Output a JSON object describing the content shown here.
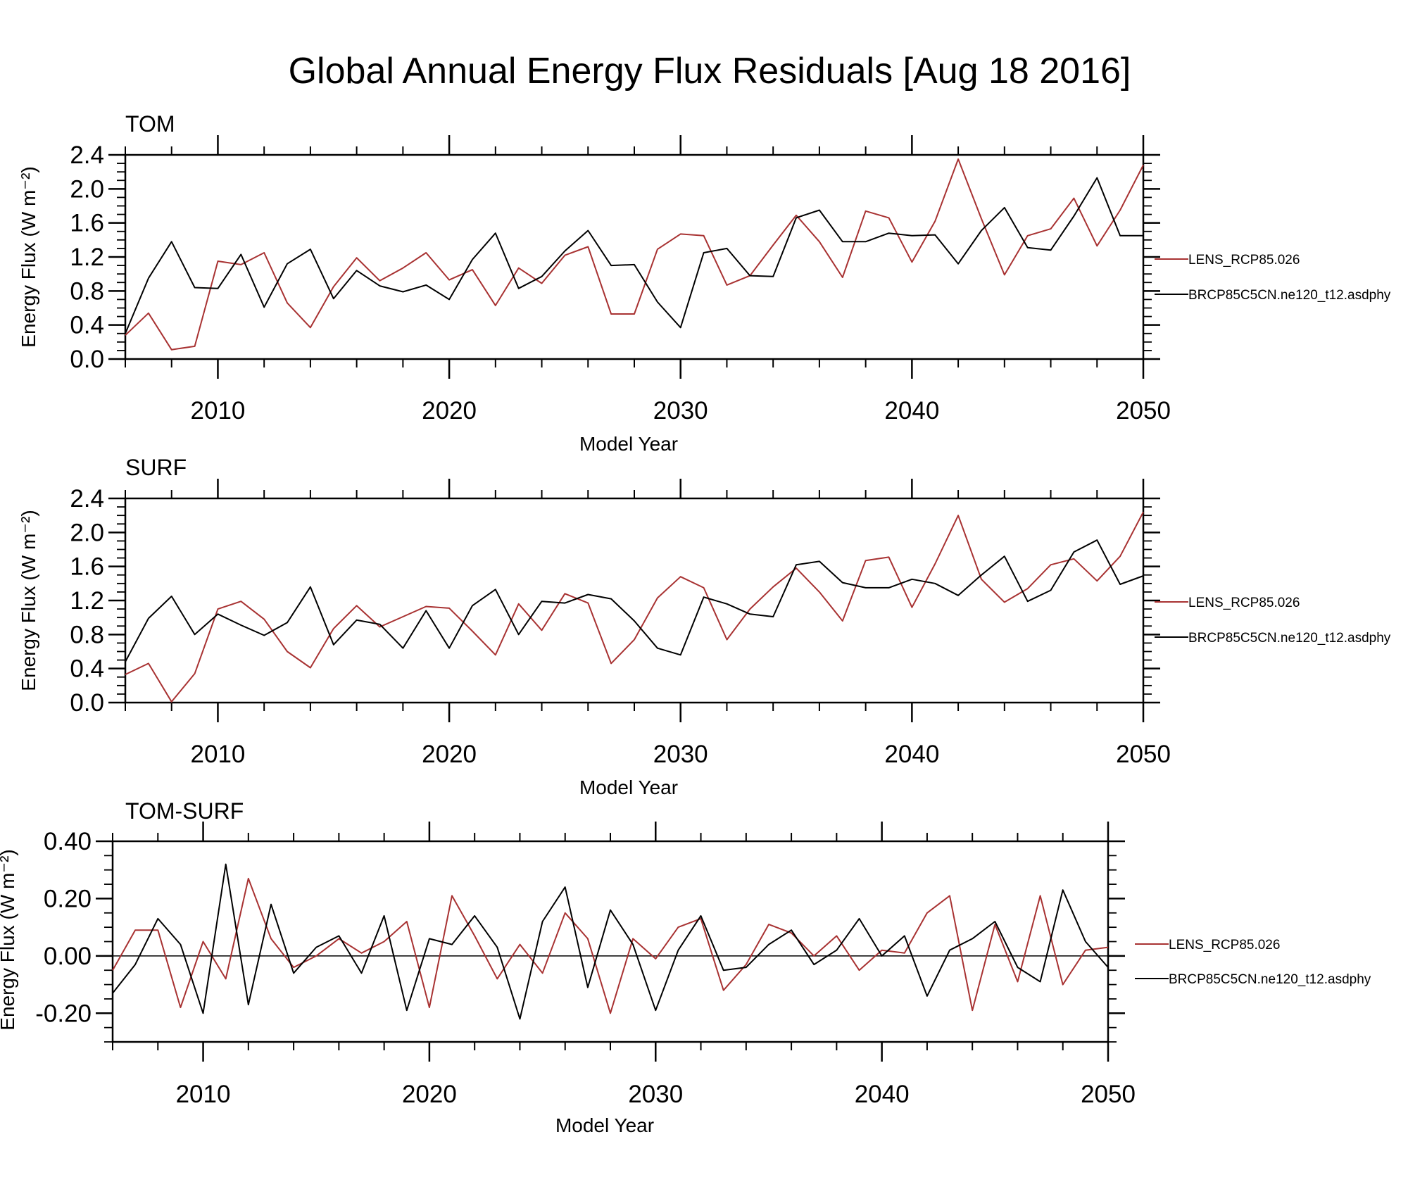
{
  "title": "Global Annual Energy Flux Residuals [Aug 18 2016]",
  "colors": {
    "LENS_RCP85.026": "#a83232",
    "BRCP85C5CN.ne120_t12.asdphy": "#000000"
  },
  "chart_data": [
    {
      "type": "line",
      "panel_title": "TOM",
      "xlabel": "Model Year",
      "ylabel": "Energy Flux (W m⁻²)",
      "xlim": [
        2006,
        2050
      ],
      "ylim": [
        0.0,
        2.4
      ],
      "yticks": [
        "0.0",
        "0.4",
        "0.8",
        "1.2",
        "1.6",
        "2.0",
        "2.4"
      ],
      "xticks": [
        "2010",
        "2020",
        "2030",
        "2040",
        "2050"
      ],
      "legend_placement": "right",
      "x": [
        2006,
        2007,
        2008,
        2009,
        2010,
        2011,
        2012,
        2013,
        2014,
        2015,
        2016,
        2017,
        2018,
        2019,
        2020,
        2021,
        2022,
        2023,
        2024,
        2025,
        2026,
        2027,
        2028,
        2029,
        2030,
        2031,
        2032,
        2033,
        2034,
        2035,
        2036,
        2037,
        2038,
        2039,
        2040,
        2041,
        2042,
        2043,
        2044,
        2045,
        2046,
        2047,
        2048,
        2049,
        2050
      ],
      "series": [
        {
          "name": "LENS_RCP85.026",
          "values": [
            0.28,
            0.54,
            0.11,
            0.15,
            1.15,
            1.11,
            1.25,
            0.66,
            0.37,
            0.85,
            1.19,
            0.92,
            1.07,
            1.25,
            0.93,
            1.05,
            0.63,
            1.07,
            0.89,
            1.22,
            1.32,
            0.53,
            0.53,
            1.29,
            1.47,
            1.45,
            0.87,
            0.98,
            1.34,
            1.69,
            1.38,
            0.96,
            1.74,
            1.66,
            1.14,
            1.62,
            2.35,
            1.65,
            0.99,
            1.45,
            1.53,
            1.89,
            1.33,
            1.75,
            2.28
          ]
        },
        {
          "name": "BRCP85C5CN.ne120_t12.asdphy",
          "values": [
            0.3,
            0.95,
            1.38,
            0.84,
            0.83,
            1.23,
            0.61,
            1.12,
            1.29,
            0.71,
            1.04,
            0.86,
            0.79,
            0.87,
            0.7,
            1.17,
            1.48,
            0.83,
            0.97,
            1.27,
            1.51,
            1.1,
            1.11,
            0.67,
            0.37,
            1.25,
            1.3,
            0.98,
            0.97,
            1.66,
            1.75,
            1.38,
            1.38,
            1.48,
            1.45,
            1.46,
            1.12,
            1.51,
            1.78,
            1.31,
            1.28,
            1.68,
            2.13,
            1.45,
            1.45
          ]
        }
      ]
    },
    {
      "type": "line",
      "panel_title": "SURF",
      "xlabel": "Model Year",
      "ylabel": "Energy Flux (W m⁻²)",
      "xlim": [
        2006,
        2050
      ],
      "ylim": [
        0.0,
        2.4
      ],
      "yticks": [
        "0.0",
        "0.4",
        "0.8",
        "1.2",
        "1.6",
        "2.0",
        "2.4"
      ],
      "xticks": [
        "2010",
        "2020",
        "2030",
        "2040",
        "2050"
      ],
      "legend_placement": "right",
      "x": [
        2006,
        2007,
        2008,
        2009,
        2010,
        2011,
        2012,
        2013,
        2014,
        2015,
        2016,
        2017,
        2018,
        2019,
        2020,
        2021,
        2022,
        2023,
        2024,
        2025,
        2026,
        2027,
        2028,
        2029,
        2030,
        2031,
        2032,
        2033,
        2034,
        2035,
        2036,
        2037,
        2038,
        2039,
        2040,
        2041,
        2042,
        2043,
        2044,
        2045,
        2046,
        2047,
        2048,
        2049,
        2050
      ],
      "series": [
        {
          "name": "LENS_RCP85.026",
          "values": [
            0.33,
            0.46,
            0.01,
            0.34,
            1.1,
            1.19,
            0.98,
            0.6,
            0.41,
            0.87,
            1.14,
            0.89,
            1.01,
            1.13,
            1.11,
            0.84,
            0.56,
            1.16,
            0.85,
            1.28,
            1.17,
            0.46,
            0.74,
            1.23,
            1.48,
            1.35,
            0.74,
            1.1,
            1.36,
            1.58,
            1.3,
            0.96,
            1.67,
            1.71,
            1.12,
            1.63,
            2.2,
            1.45,
            1.18,
            1.34,
            1.62,
            1.69,
            1.43,
            1.72,
            2.24
          ]
        },
        {
          "name": "BRCP85C5CN.ne120_t12.asdphy",
          "values": [
            0.48,
            0.99,
            1.25,
            0.8,
            1.04,
            0.91,
            0.79,
            0.94,
            1.36,
            0.68,
            0.97,
            0.92,
            0.64,
            1.08,
            0.64,
            1.14,
            1.33,
            0.8,
            1.19,
            1.17,
            1.27,
            1.22,
            0.96,
            0.64,
            0.56,
            1.24,
            1.16,
            1.04,
            1.01,
            1.62,
            1.66,
            1.41,
            1.35,
            1.35,
            1.45,
            1.4,
            1.26,
            1.5,
            1.72,
            1.19,
            1.32,
            1.77,
            1.91,
            1.39,
            1.49
          ]
        }
      ]
    },
    {
      "type": "line",
      "panel_title": "TOM-SURF",
      "xlabel": "Model Year",
      "ylabel": "Energy Flux (W m⁻²)",
      "xlim": [
        2006,
        2050
      ],
      "ylim": [
        -0.3,
        0.4
      ],
      "yticks": [
        "-0.20",
        "0.00",
        "0.20",
        "0.40"
      ],
      "xticks": [
        "2010",
        "2020",
        "2030",
        "2040",
        "2050"
      ],
      "zero_line": true,
      "legend_placement": "right",
      "x": [
        2006,
        2007,
        2008,
        2009,
        2010,
        2011,
        2012,
        2013,
        2014,
        2015,
        2016,
        2017,
        2018,
        2019,
        2020,
        2021,
        2022,
        2023,
        2024,
        2025,
        2026,
        2027,
        2028,
        2029,
        2030,
        2031,
        2032,
        2033,
        2034,
        2035,
        2036,
        2037,
        2038,
        2039,
        2040,
        2041,
        2042,
        2043,
        2044,
        2045,
        2046,
        2047,
        2048,
        2049,
        2050
      ],
      "series": [
        {
          "name": "LENS_RCP85.026",
          "values": [
            -0.05,
            0.09,
            0.09,
            -0.18,
            0.05,
            -0.08,
            0.27,
            0.06,
            -0.04,
            0.0,
            0.06,
            0.01,
            0.05,
            0.12,
            -0.18,
            0.21,
            0.07,
            -0.08,
            0.04,
            -0.06,
            0.15,
            0.06,
            -0.2,
            0.06,
            -0.01,
            0.1,
            0.13,
            -0.12,
            -0.03,
            0.11,
            0.08,
            0.0,
            0.07,
            -0.05,
            0.02,
            0.01,
            0.15,
            0.21,
            -0.19,
            0.11,
            -0.09,
            0.21,
            -0.1,
            0.02,
            0.03
          ]
        },
        {
          "name": "BRCP85C5CN.ne120_t12.asdphy",
          "values": [
            -0.13,
            -0.03,
            0.13,
            0.04,
            -0.2,
            0.32,
            -0.17,
            0.18,
            -0.06,
            0.03,
            0.07,
            -0.06,
            0.14,
            -0.19,
            0.06,
            0.04,
            0.14,
            0.03,
            -0.22,
            0.12,
            0.24,
            -0.11,
            0.16,
            0.04,
            -0.19,
            0.02,
            0.14,
            -0.05,
            -0.04,
            0.04,
            0.09,
            -0.03,
            0.02,
            0.13,
            0.0,
            0.07,
            -0.14,
            0.02,
            0.06,
            0.12,
            -0.04,
            -0.09,
            0.23,
            0.05,
            -0.04
          ]
        }
      ]
    }
  ]
}
